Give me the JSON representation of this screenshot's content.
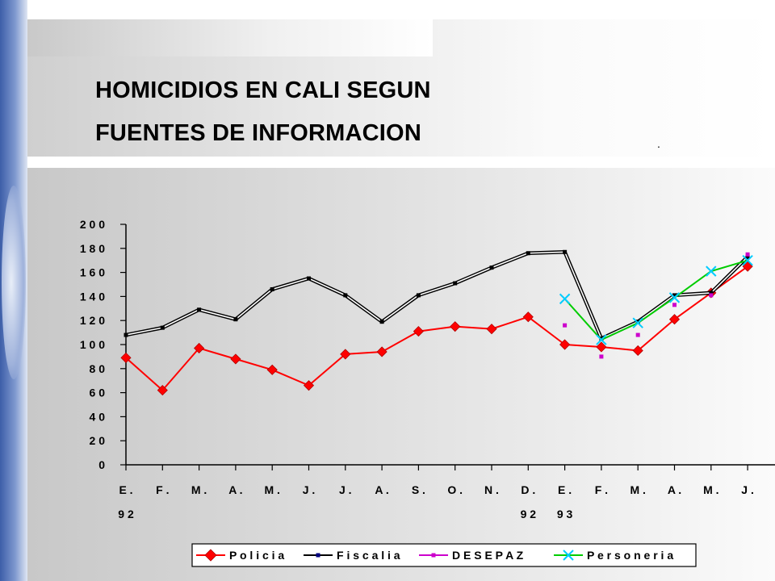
{
  "title_line1": "HOMICIDIOS EN CALI SEGUN",
  "title_line2": "FUENTES DE INFORMACION",
  "dot": ".",
  "chart_data": {
    "type": "line",
    "title": "HOMICIDIOS EN CALI SEGUN FUENTES DE INFORMACION",
    "categories": [
      "E.",
      "F.",
      "M.",
      "A.",
      "M.",
      "J.",
      "J.",
      "A.",
      "S.",
      "O.",
      "N.",
      "D.",
      "E.",
      "F.",
      "M.",
      "A.",
      "M.",
      "J."
    ],
    "category_sublabels": [
      "92",
      "",
      "",
      "",
      "",
      "",
      "",
      "",
      "",
      "",
      "",
      "92",
      "93",
      "",
      "",
      "",
      "",
      ""
    ],
    "ylim": [
      0,
      200
    ],
    "yticks": [
      0,
      20,
      40,
      60,
      80,
      100,
      120,
      140,
      160,
      180,
      200
    ],
    "grid": false,
    "legend_position": "bottom",
    "series": [
      {
        "name": "Policia",
        "color": "#ff0000",
        "marker": "diamond",
        "values": [
          89,
          62,
          97,
          88,
          79,
          66,
          92,
          94,
          111,
          115,
          113,
          123,
          100,
          98,
          95,
          121,
          143,
          165
        ]
      },
      {
        "name": "Fiscalia",
        "color": "#000000",
        "marker": "square",
        "values": [
          108,
          114,
          129,
          121,
          146,
          155,
          141,
          119,
          141,
          151,
          164,
          176,
          177,
          105,
          119,
          141,
          143,
          173
        ]
      },
      {
        "name": "DESEPAZ",
        "color": "#cc00cc",
        "marker": "square",
        "values": [
          null,
          null,
          null,
          null,
          null,
          null,
          null,
          null,
          null,
          null,
          null,
          null,
          116,
          90,
          108,
          133,
          141,
          175
        ]
      },
      {
        "name": "Personeria",
        "color": "#00cc00",
        "marker_color": "#00ccff",
        "marker": "x",
        "values": [
          null,
          null,
          null,
          null,
          null,
          null,
          null,
          null,
          null,
          null,
          null,
          null,
          138,
          104,
          118,
          139,
          161,
          170
        ]
      }
    ]
  }
}
